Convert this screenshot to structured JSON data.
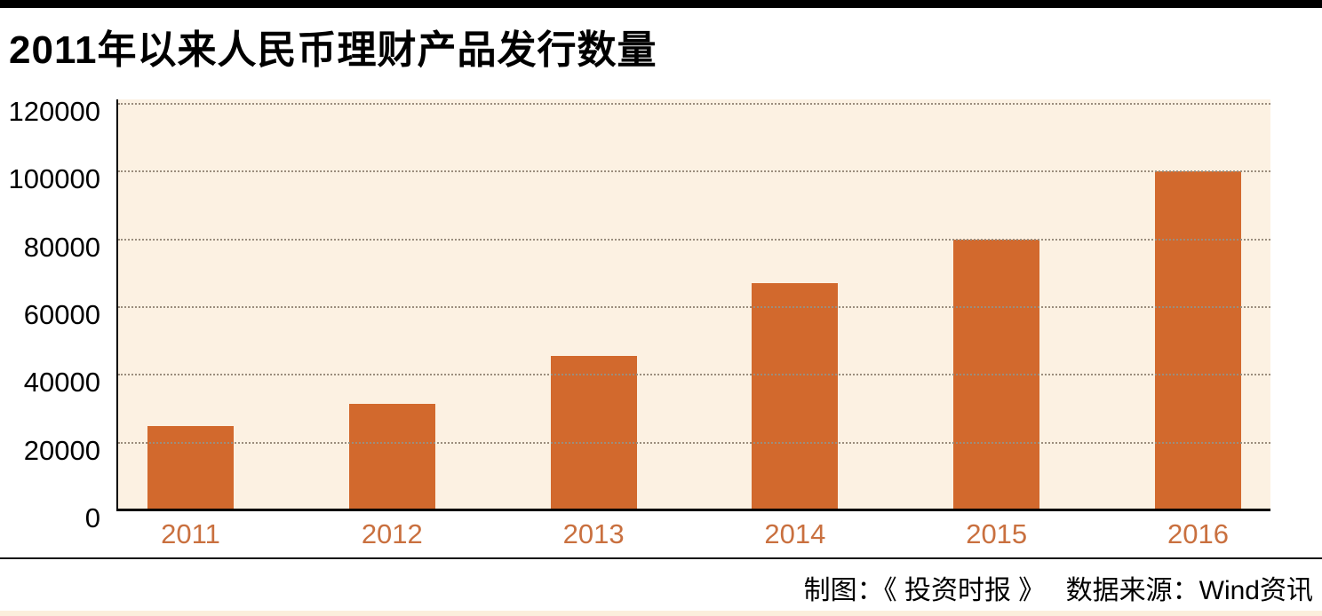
{
  "page": {
    "title": "2011年以来人民币理财产品发行数量"
  },
  "footer": {
    "credit": "制图：《 投资时报 》　 数据来源：Wind资讯"
  },
  "chart_data": {
    "type": "bar",
    "title": "2011年以来人民币理财产品发行数量",
    "categories": [
      "2011",
      "2012",
      "2013",
      "2014",
      "2015",
      "2016"
    ],
    "values": [
      25000,
      31500,
      45500,
      67000,
      80000,
      100000
    ],
    "xlabel": "",
    "ylabel": "",
    "ylim": [
      0,
      120000
    ],
    "yticks": [
      0,
      20000,
      40000,
      60000,
      80000,
      100000,
      120000
    ],
    "grid": "horizontal-dotted",
    "legend": "none",
    "source_note": "数据来源：Wind资讯",
    "credit_note": "制图：《 投资时报 》",
    "colors": {
      "bar": "#d2692d",
      "xtick_label": "#c9703f",
      "plot_background": "#fcf1e2",
      "gridline": "#9b8d7d",
      "axis": "#000000",
      "top_bar": "#000000",
      "bottom_strip": "#fbeedc"
    }
  }
}
